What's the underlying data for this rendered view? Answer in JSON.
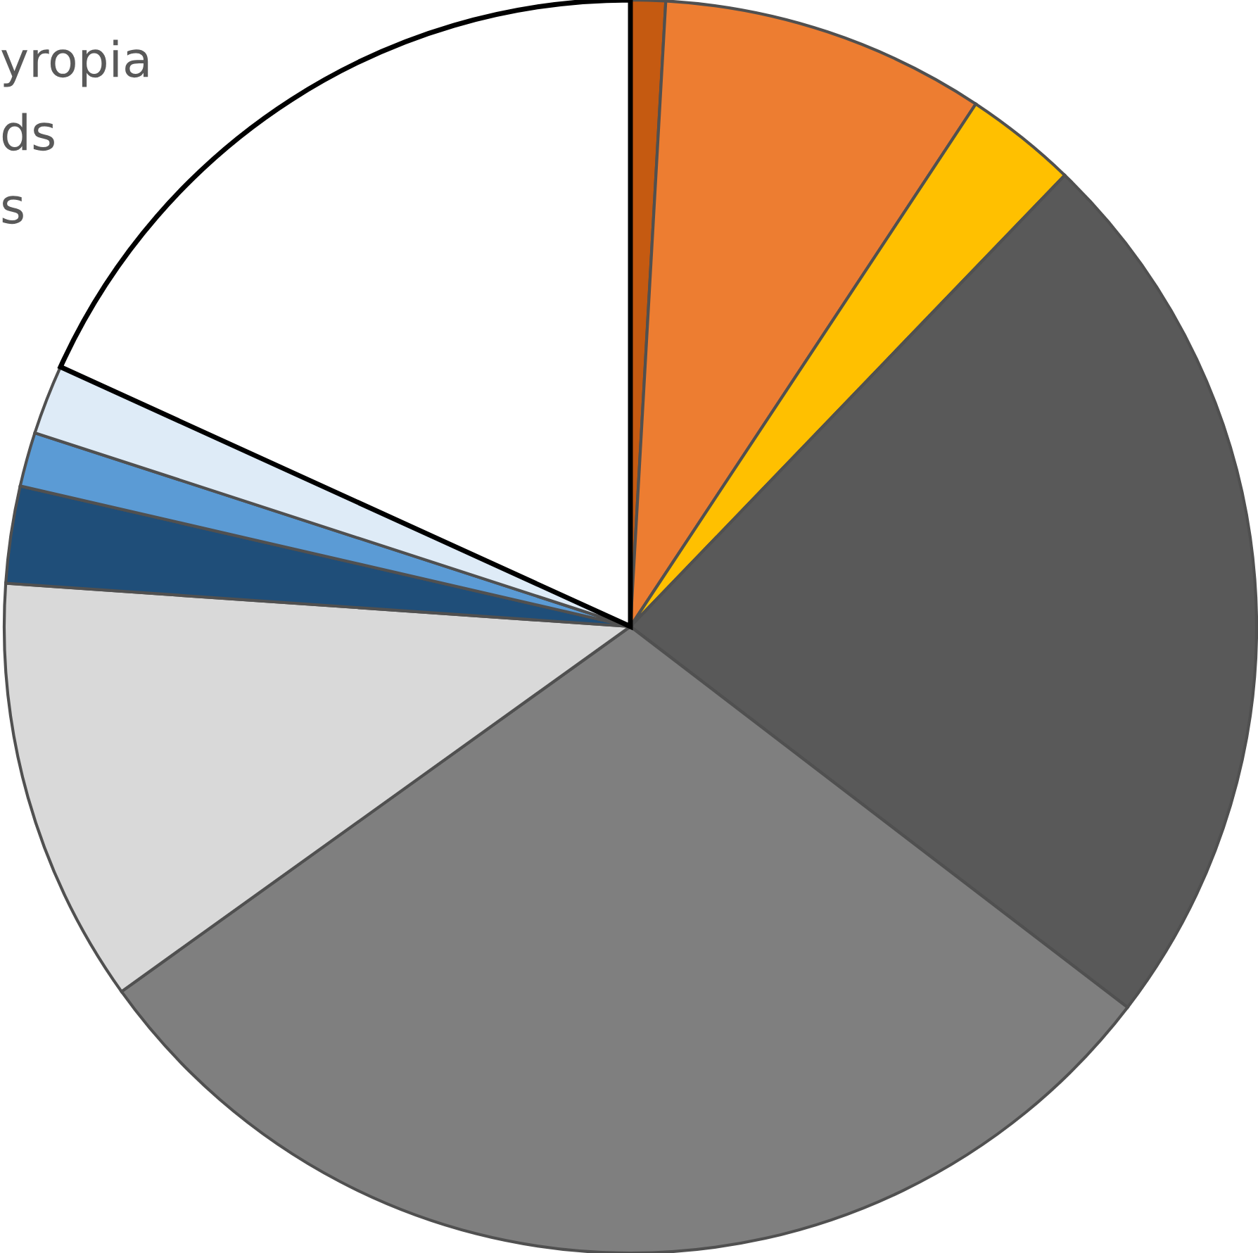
{
  "chart_data": {
    "type": "pie",
    "categories": [
      null,
      null,
      null,
      null,
      null,
      null,
      null,
      null,
      null,
      null
    ],
    "values": [
      0.9,
      8.4,
      2.9,
      23.2,
      29.7,
      11.0,
      2.5,
      1.4,
      1.8,
      18.2
    ],
    "colors": [
      "#c55a11",
      "#ed7d31",
      "#ffc000",
      "#595959",
      "#7f7f7f",
      "#d9d9d9",
      "#1f4e79",
      "#5b9bd5",
      "#deebf7",
      "#ffffff"
    ],
    "annotations": [
      "yropia",
      "ds",
      "s"
    ]
  }
}
